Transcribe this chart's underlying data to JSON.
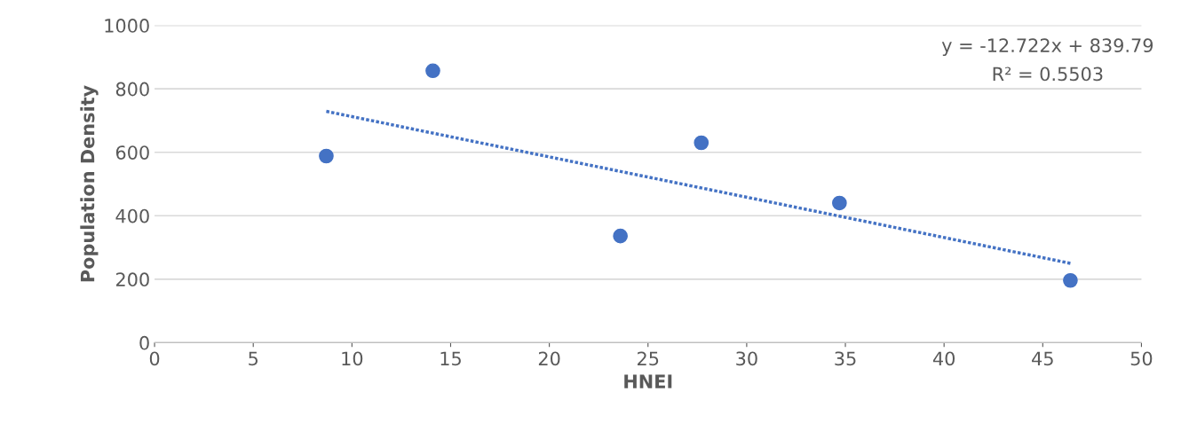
{
  "chart_data": {
    "type": "scatter",
    "xlabel": "HNEI",
    "ylabel": "Population Density",
    "xlim": [
      0,
      50
    ],
    "xticks": [
      0,
      5,
      10,
      15,
      20,
      25,
      30,
      35,
      40,
      45,
      50
    ],
    "ylim": [
      0,
      1000
    ],
    "yticks": [
      0,
      200,
      400,
      600,
      800,
      1000
    ],
    "grid": "y",
    "legend": false,
    "marker": "circle",
    "series": [
      {
        "color": "#4472c4",
        "x": [
          8.7,
          14.1,
          23.6,
          27.7,
          34.7,
          46.4
        ],
        "values": [
          588,
          857,
          336,
          630,
          440,
          196
        ]
      },
      {
        "type": "line",
        "color": "#4472c4",
        "line_style": "dotted",
        "marker": "none",
        "x": [
          8.7,
          46.4
        ],
        "values": [
          729,
          250
        ]
      }
    ],
    "annotations": [
      "y = -12.722x + 839.79",
      "R² = 0.5503"
    ]
  }
}
